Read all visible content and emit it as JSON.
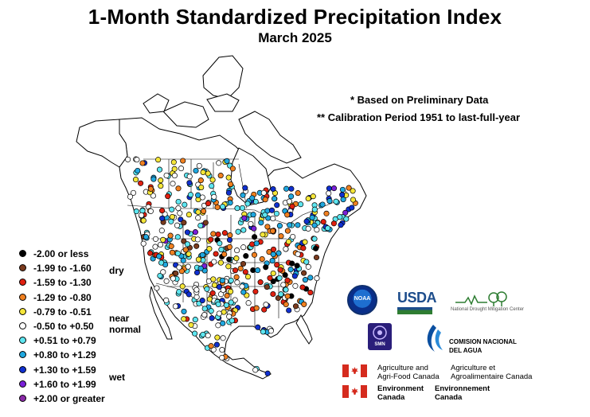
{
  "title": "1-Month Standardized Precipitation Index",
  "subtitle": "March 2025",
  "notes": {
    "preliminary": "* Based on Preliminary Data",
    "calibration": "** Calibration Period 1951 to last-full-year"
  },
  "legend": {
    "items": [
      {
        "label": "-2.00 or less",
        "color": "#000000"
      },
      {
        "label": "-1.99 to -1.60",
        "color": "#7a3b1e"
      },
      {
        "label": "-1.59 to -1.30",
        "color": "#e02010"
      },
      {
        "label": "-1.29 to -0.80",
        "color": "#f08020"
      },
      {
        "label": "-0.79 to -0.51",
        "color": "#f5e63a"
      },
      {
        "label": "-0.50 to +0.50",
        "color": "#ffffff"
      },
      {
        "label": "+0.51 to +0.79",
        "color": "#5ee6f0"
      },
      {
        "label": "+0.80 to +1.29",
        "color": "#20a8e0"
      },
      {
        "label": "+1.30 to +1.59",
        "color": "#1030d0"
      },
      {
        "label": "+1.60 to +1.99",
        "color": "#7a20d8"
      },
      {
        "label": "+2.00 or greater",
        "color": "#8a2aa8"
      }
    ],
    "groups": {
      "dry": "dry",
      "near_normal": "near\nnormal",
      "wet": "wet"
    }
  },
  "logos": {
    "noaa": "NOAA",
    "usda": "USDA",
    "ndmc": "National Drought Mitigation Center",
    "smn": "SMN",
    "conagua": "COMISION NACIONAL\nDEL AGUA"
  },
  "agencies": {
    "agriculture_en": "Agriculture and\nAgri-Food Canada",
    "agriculture_fr": "Agriculture et\nAgroalimentaire Canada",
    "environment_en": "Environment\nCanada",
    "environment_fr": "Environnement\nCanada"
  }
}
